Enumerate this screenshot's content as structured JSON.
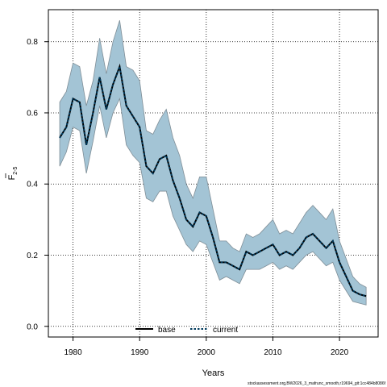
{
  "chart_data": {
    "type": "line",
    "xlabel": "Years",
    "ylabel": "F",
    "ylabel_subscript": "2-5",
    "xlim": [
      1976.3,
      2025.8
    ],
    "ylim": [
      -0.03,
      0.89
    ],
    "x_ticks": [
      1980,
      1990,
      2000,
      2010,
      2020
    ],
    "y_ticks": [
      0.0,
      0.2,
      0.4,
      0.6,
      0.8
    ],
    "x_tick_labels": [
      "1980",
      "1990",
      "2000",
      "2010",
      "2020"
    ],
    "y_tick_labels": [
      "0.0",
      "0.2",
      "0.4",
      "0.6",
      "0.8"
    ],
    "grid": true,
    "legend_position": "bottom-center",
    "band_color": "#a3c4d5",
    "band_edge_color": "#7f8e97",
    "line_color": "#003a5c",
    "x": [
      1978,
      1979,
      1980,
      1981,
      1982,
      1983,
      1984,
      1985,
      1986,
      1987,
      1988,
      1989,
      1990,
      1991,
      1992,
      1993,
      1994,
      1995,
      1996,
      1997,
      1998,
      1999,
      2000,
      2001,
      2002,
      2003,
      2004,
      2005,
      2006,
      2007,
      2008,
      2009,
      2010,
      2011,
      2012,
      2013,
      2014,
      2015,
      2016,
      2017,
      2018,
      2019,
      2020,
      2021,
      2022,
      2023,
      2024
    ],
    "series": [
      {
        "name": "base",
        "style": "solid",
        "color": "#000000",
        "values": [
          0.53,
          0.56,
          0.64,
          0.63,
          0.51,
          0.6,
          0.7,
          0.61,
          0.68,
          0.73,
          0.62,
          0.59,
          0.56,
          0.45,
          0.43,
          0.47,
          0.48,
          0.41,
          0.36,
          0.3,
          0.28,
          0.32,
          0.31,
          0.25,
          0.18,
          0.18,
          0.17,
          0.16,
          0.21,
          0.2,
          0.21,
          0.22,
          0.23,
          0.2,
          0.21,
          0.2,
          0.22,
          0.25,
          0.26,
          0.24,
          0.22,
          0.24,
          0.18,
          0.14,
          0.1,
          0.09,
          0.085
        ]
      },
      {
        "name": "current",
        "style": "dotted",
        "color": "#003a5c",
        "values": [
          0.53,
          0.56,
          0.64,
          0.63,
          0.51,
          0.6,
          0.7,
          0.61,
          0.68,
          0.73,
          0.62,
          0.59,
          0.56,
          0.45,
          0.43,
          0.47,
          0.48,
          0.41,
          0.36,
          0.3,
          0.28,
          0.32,
          0.31,
          0.25,
          0.18,
          0.18,
          0.17,
          0.16,
          0.21,
          0.2,
          0.21,
          0.22,
          0.23,
          0.2,
          0.21,
          0.2,
          0.22,
          0.25,
          0.26,
          0.24,
          0.22,
          0.24,
          0.18,
          0.14,
          0.1,
          0.09,
          0.085
        ]
      }
    ],
    "band_upper": [
      0.63,
      0.66,
      0.74,
      0.73,
      0.62,
      0.69,
      0.81,
      0.71,
      0.8,
      0.86,
      0.73,
      0.72,
      0.69,
      0.55,
      0.54,
      0.58,
      0.61,
      0.53,
      0.48,
      0.4,
      0.36,
      0.42,
      0.42,
      0.33,
      0.24,
      0.24,
      0.22,
      0.21,
      0.26,
      0.25,
      0.26,
      0.28,
      0.3,
      0.26,
      0.27,
      0.26,
      0.29,
      0.32,
      0.34,
      0.32,
      0.3,
      0.33,
      0.24,
      0.19,
      0.14,
      0.12,
      0.11
    ],
    "band_lower": [
      0.45,
      0.49,
      0.56,
      0.55,
      0.43,
      0.52,
      0.62,
      0.53,
      0.6,
      0.64,
      0.51,
      0.48,
      0.46,
      0.36,
      0.35,
      0.38,
      0.38,
      0.31,
      0.27,
      0.23,
      0.21,
      0.24,
      0.23,
      0.18,
      0.13,
      0.14,
      0.13,
      0.12,
      0.16,
      0.16,
      0.16,
      0.17,
      0.18,
      0.16,
      0.17,
      0.16,
      0.18,
      0.2,
      0.21,
      0.19,
      0.17,
      0.18,
      0.13,
      0.1,
      0.07,
      0.065,
      0.06
    ]
  },
  "legend": {
    "items": [
      {
        "label": "base"
      },
      {
        "label": "current"
      }
    ]
  },
  "footer": {
    "note": "stockassessment.org,BW2026_3_mafrunc_smooth,r19694_git:1cc484b8086f"
  }
}
